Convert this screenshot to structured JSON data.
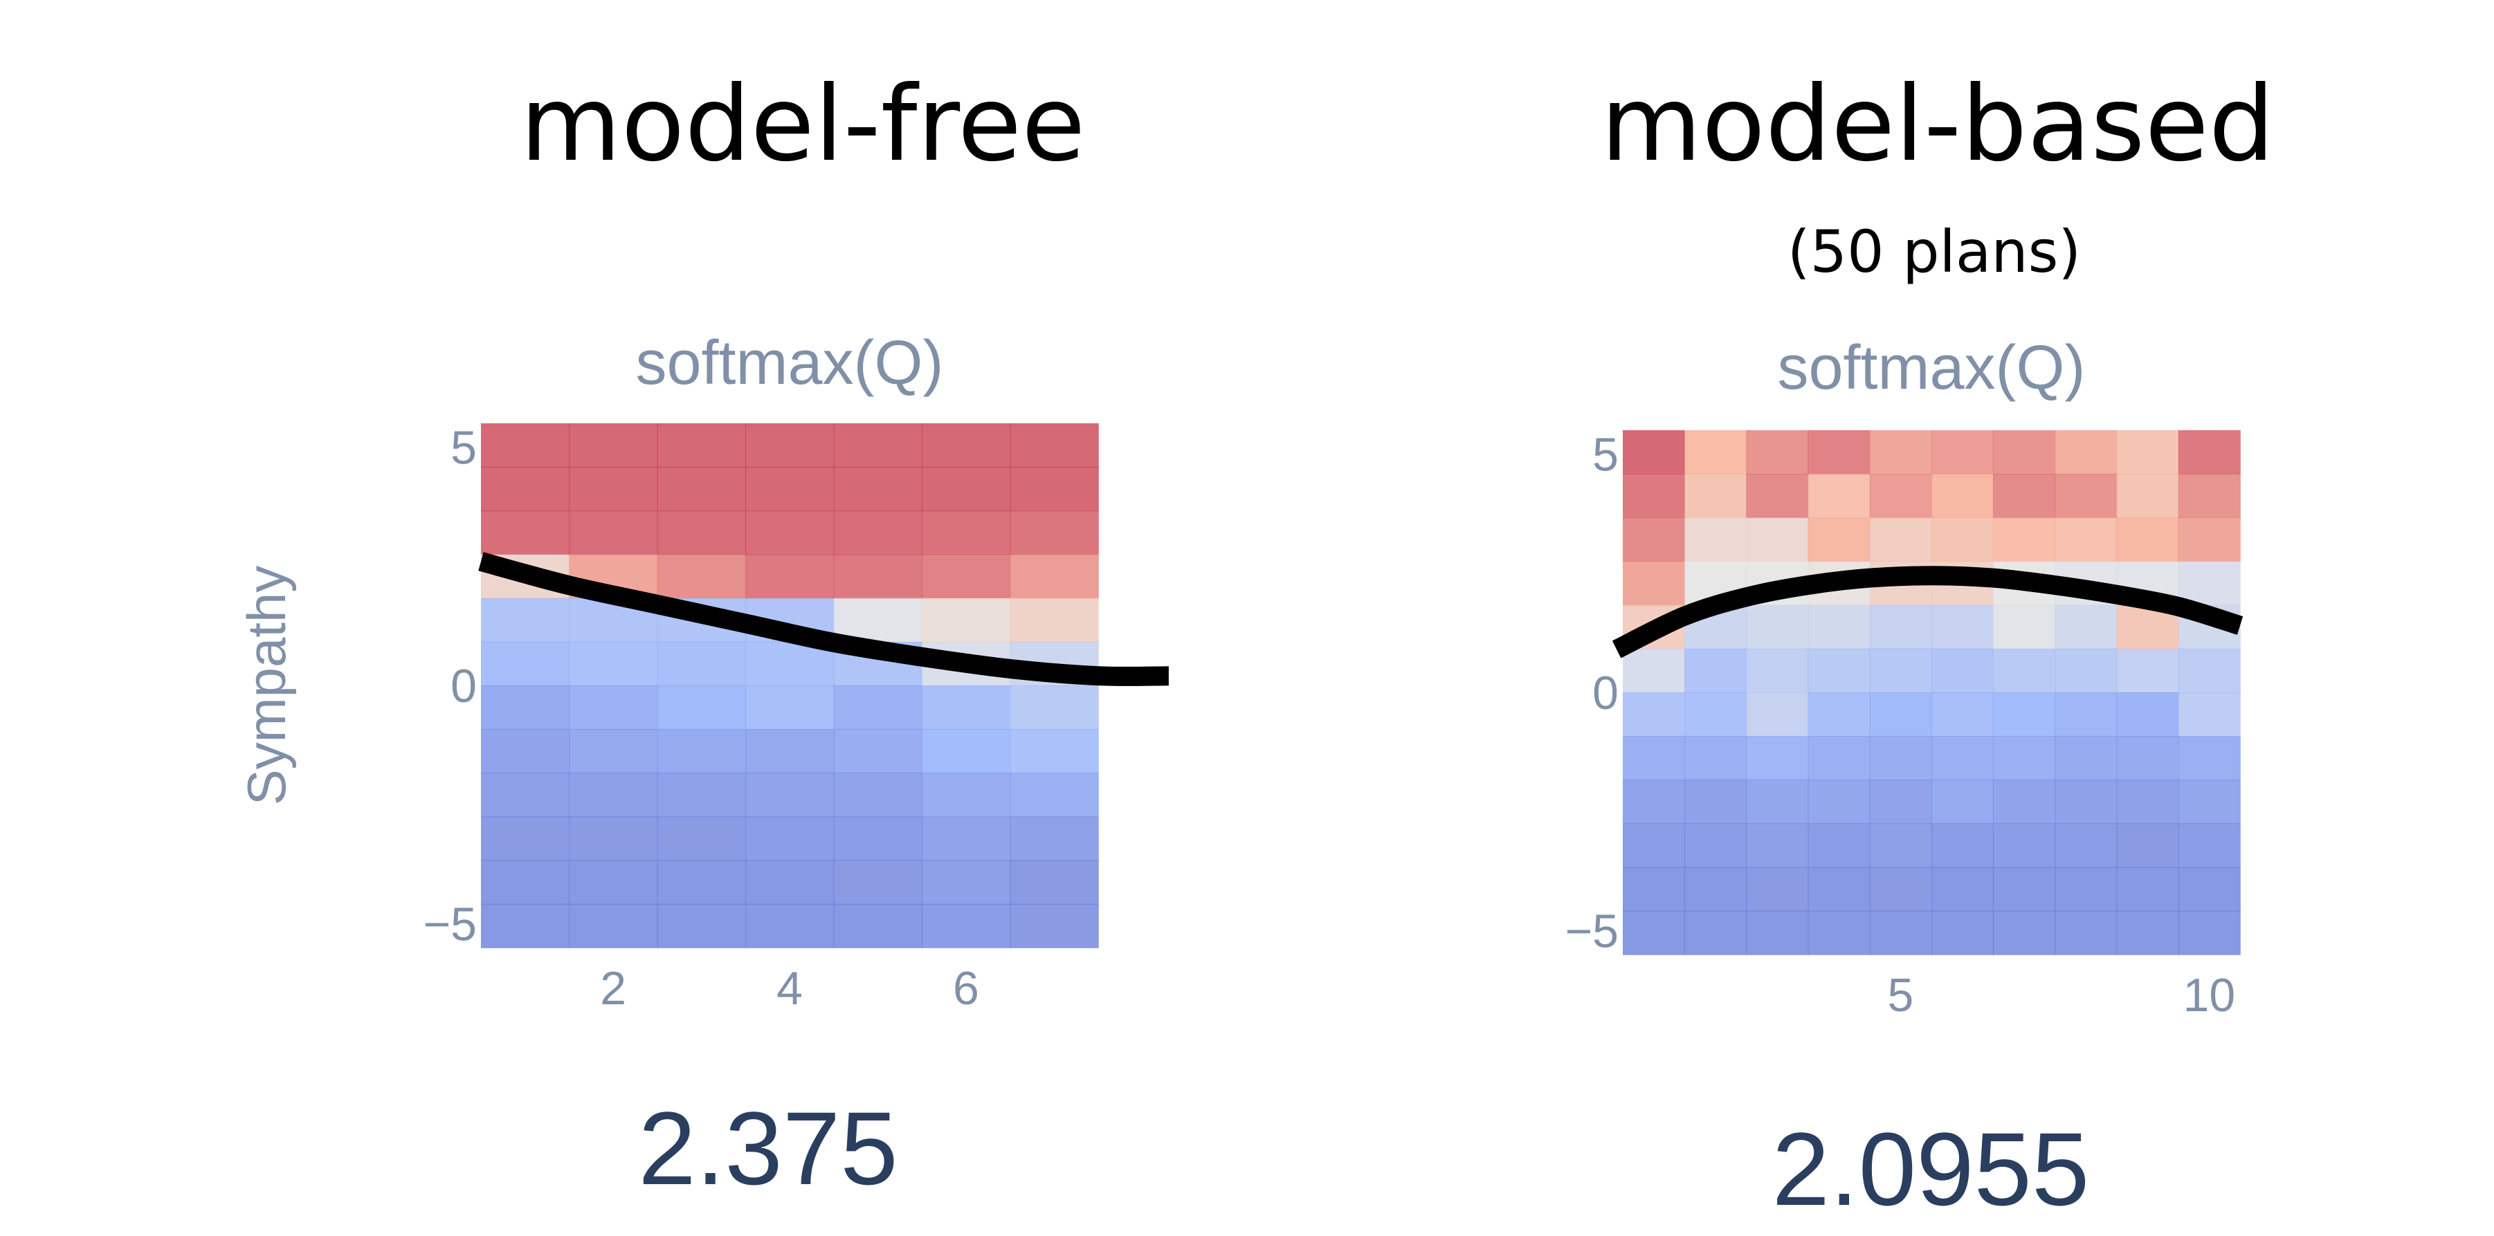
{
  "panels": [
    {
      "title": "model-free",
      "subtitle": "",
      "score": "2.375"
    },
    {
      "title": "model-based",
      "subtitle": "(50 plans)",
      "score": "2.0955"
    }
  ],
  "colors": {
    "axis_text": "#8090a8",
    "score_text": "#2a3f5f",
    "overlay_curve": "#000000"
  },
  "chart_data": [
    {
      "type": "heatmap",
      "title": "softmax(Q)",
      "ylabel": "Sympathy",
      "xlabel": "",
      "x_range": [
        0.5,
        7.5
      ],
      "y_range": [
        -5.5,
        5.5
      ],
      "x_ticks": [
        2,
        4,
        6
      ],
      "y_ticks": [
        5,
        0,
        -5
      ],
      "y_tick_labels": [
        "5",
        "0",
        "−5"
      ],
      "value_range": [
        0,
        1
      ],
      "grid": false,
      "legend": "none",
      "rows_top_to_bottom": [
        [
          0.94,
          0.94,
          0.94,
          0.94,
          0.94,
          0.94,
          0.94
        ],
        [
          0.94,
          0.94,
          0.94,
          0.94,
          0.94,
          0.94,
          0.94
        ],
        [
          0.93,
          0.93,
          0.93,
          0.93,
          0.93,
          0.92,
          0.91
        ],
        [
          0.6,
          0.8,
          0.85,
          0.9,
          0.9,
          0.88,
          0.82
        ],
        [
          0.3,
          0.3,
          0.3,
          0.3,
          0.48,
          0.55,
          0.62
        ],
        [
          0.26,
          0.28,
          0.27,
          0.28,
          0.3,
          0.45,
          0.4
        ],
        [
          0.18,
          0.21,
          0.24,
          0.27,
          0.21,
          0.27,
          0.33
        ],
        [
          0.15,
          0.17,
          0.18,
          0.17,
          0.19,
          0.25,
          0.28
        ],
        [
          0.13,
          0.13,
          0.14,
          0.15,
          0.15,
          0.19,
          0.2
        ],
        [
          0.11,
          0.11,
          0.11,
          0.12,
          0.12,
          0.15,
          0.14
        ],
        [
          0.1,
          0.1,
          0.1,
          0.1,
          0.11,
          0.13,
          0.11
        ],
        [
          0.1,
          0.1,
          0.1,
          0.1,
          0.1,
          0.12,
          0.11
        ]
      ],
      "overlay_curve": {
        "x": [
          0.5,
          1.5,
          2.5,
          3.5,
          4.5,
          5.5,
          6.5,
          7.5,
          8.3
        ],
        "y": [
          2.6,
          2.1,
          1.7,
          1.3,
          0.9,
          0.6,
          0.35,
          0.2,
          0.2
        ]
      }
    },
    {
      "type": "heatmap",
      "title": "softmax(Q)",
      "ylabel": "",
      "xlabel": "",
      "x_range": [
        0.5,
        10.5
      ],
      "y_range": [
        -5.5,
        5.5
      ],
      "x_ticks": [
        5,
        10
      ],
      "y_ticks": [
        5,
        0,
        -5
      ],
      "y_tick_labels": [
        "5",
        "0",
        "−5"
      ],
      "value_range": [
        0,
        1
      ],
      "grid": false,
      "legend": "none",
      "rows_top_to_bottom": [
        [
          0.94,
          0.75,
          0.84,
          0.88,
          0.8,
          0.82,
          0.84,
          0.78,
          0.7,
          0.9
        ],
        [
          0.9,
          0.7,
          0.86,
          0.72,
          0.82,
          0.76,
          0.86,
          0.84,
          0.7,
          0.84
        ],
        [
          0.86,
          0.58,
          0.58,
          0.76,
          0.65,
          0.7,
          0.74,
          0.72,
          0.76,
          0.8
        ],
        [
          0.8,
          0.5,
          0.5,
          0.52,
          0.62,
          0.62,
          0.5,
          0.48,
          0.48,
          0.45
        ],
        [
          0.65,
          0.4,
          0.42,
          0.42,
          0.38,
          0.38,
          0.48,
          0.42,
          0.68,
          0.42
        ],
        [
          0.44,
          0.3,
          0.36,
          0.33,
          0.32,
          0.3,
          0.33,
          0.33,
          0.37,
          0.35
        ],
        [
          0.3,
          0.28,
          0.38,
          0.27,
          0.24,
          0.27,
          0.25,
          0.23,
          0.22,
          0.35
        ],
        [
          0.2,
          0.2,
          0.23,
          0.2,
          0.19,
          0.2,
          0.2,
          0.18,
          0.18,
          0.2
        ],
        [
          0.15,
          0.14,
          0.16,
          0.16,
          0.15,
          0.18,
          0.15,
          0.14,
          0.14,
          0.16
        ],
        [
          0.12,
          0.12,
          0.13,
          0.12,
          0.13,
          0.12,
          0.12,
          0.12,
          0.11,
          0.12
        ],
        [
          0.1,
          0.1,
          0.11,
          0.1,
          0.11,
          0.1,
          0.1,
          0.1,
          0.1,
          0.1
        ],
        [
          0.1,
          0.1,
          0.1,
          0.1,
          0.1,
          0.1,
          0.1,
          0.1,
          0.1,
          0.1
        ]
      ],
      "overlay_curve": {
        "x": [
          0.4,
          1.5,
          2.5,
          3.5,
          4.5,
          5.5,
          6.5,
          7.5,
          8.5,
          9.5,
          10.5
        ],
        "y": [
          0.9,
          1.6,
          2.0,
          2.25,
          2.4,
          2.45,
          2.4,
          2.25,
          2.05,
          1.8,
          1.4
        ]
      }
    }
  ]
}
